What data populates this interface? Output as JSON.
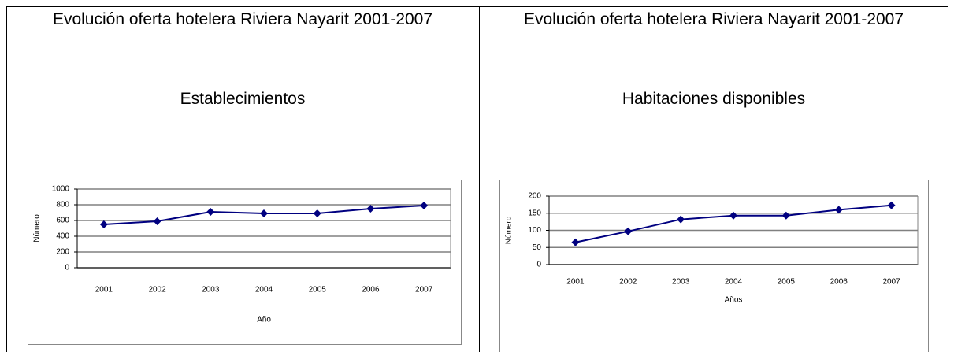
{
  "table": {
    "headers": [
      {
        "title": "Evolución oferta hotelera Riviera Nayarit 2001-2007",
        "subtitle": "Establecimientos"
      },
      {
        "title": "Evolución oferta hotelera Riviera Nayarit 2001-2007",
        "subtitle": "Habitaciones disponibles"
      }
    ]
  },
  "chart_data": [
    {
      "type": "line",
      "categories": [
        "2001",
        "2002",
        "2003",
        "2004",
        "2005",
        "2006",
        "2007"
      ],
      "values": [
        550,
        590,
        710,
        690,
        690,
        750,
        790
      ],
      "color": "#000080",
      "x_label": "Año",
      "y_label": "Número",
      "ylim": [
        0,
        1000
      ],
      "yticks": [
        0,
        200,
        400,
        600,
        800,
        1000
      ],
      "grid": true
    },
    {
      "type": "line",
      "categories": [
        "2001",
        "2002",
        "2003",
        "2004",
        "2005",
        "2006",
        "2007"
      ],
      "values": [
        65,
        97,
        132,
        143,
        143,
        160,
        173
      ],
      "color": "#000080",
      "x_label": "Años",
      "y_label": "Número",
      "ylim": [
        0,
        200
      ],
      "yticks": [
        0,
        50,
        100,
        150,
        200
      ],
      "grid": true
    }
  ]
}
